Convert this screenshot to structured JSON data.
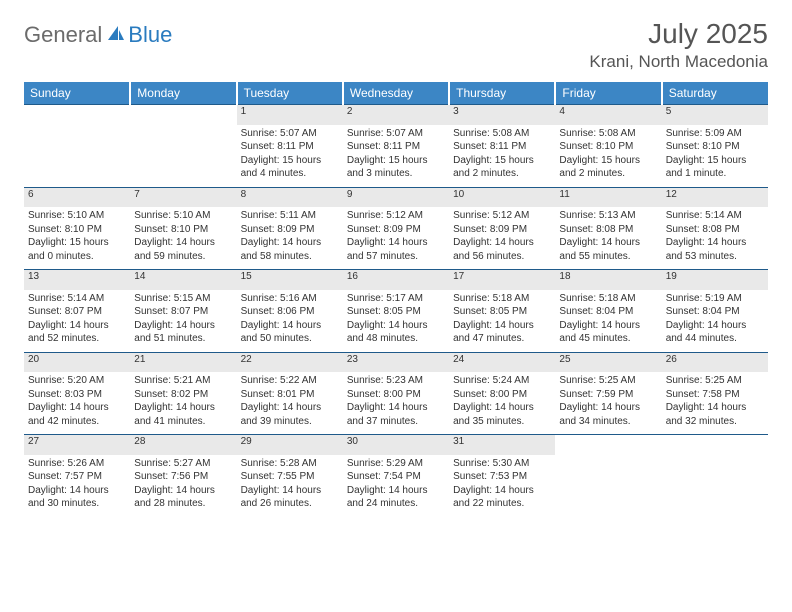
{
  "logo": {
    "text_general": "General",
    "text_blue": "Blue"
  },
  "title": {
    "month": "July 2025",
    "location": "Krani, North Macedonia"
  },
  "weekdays": [
    "Sunday",
    "Monday",
    "Tuesday",
    "Wednesday",
    "Thursday",
    "Friday",
    "Saturday"
  ],
  "colors": {
    "header_bg": "#3c86c5",
    "header_text": "#ffffff",
    "daynum_bg": "#e9e9e9",
    "rule": "#1f5a8a",
    "logo_gray": "#6b6b6b",
    "logo_blue": "#2a7bbf",
    "text": "#333333",
    "title_color": "#555555"
  },
  "typography": {
    "month_title_fontsize": 28,
    "location_fontsize": 17,
    "weekday_fontsize": 12,
    "daynum_fontsize": 11,
    "body_fontsize": 10,
    "font_family": "Arial"
  },
  "weeks": [
    {
      "nums": [
        "",
        "",
        "1",
        "2",
        "3",
        "4",
        "5"
      ],
      "cells": [
        null,
        null,
        {
          "sunrise": "Sunrise: 5:07 AM",
          "sunset": "Sunset: 8:11 PM",
          "day1": "Daylight: 15 hours",
          "day2": "and 4 minutes."
        },
        {
          "sunrise": "Sunrise: 5:07 AM",
          "sunset": "Sunset: 8:11 PM",
          "day1": "Daylight: 15 hours",
          "day2": "and 3 minutes."
        },
        {
          "sunrise": "Sunrise: 5:08 AM",
          "sunset": "Sunset: 8:11 PM",
          "day1": "Daylight: 15 hours",
          "day2": "and 2 minutes."
        },
        {
          "sunrise": "Sunrise: 5:08 AM",
          "sunset": "Sunset: 8:10 PM",
          "day1": "Daylight: 15 hours",
          "day2": "and 2 minutes."
        },
        {
          "sunrise": "Sunrise: 5:09 AM",
          "sunset": "Sunset: 8:10 PM",
          "day1": "Daylight: 15 hours",
          "day2": "and 1 minute."
        }
      ]
    },
    {
      "nums": [
        "6",
        "7",
        "8",
        "9",
        "10",
        "11",
        "12"
      ],
      "cells": [
        {
          "sunrise": "Sunrise: 5:10 AM",
          "sunset": "Sunset: 8:10 PM",
          "day1": "Daylight: 15 hours",
          "day2": "and 0 minutes."
        },
        {
          "sunrise": "Sunrise: 5:10 AM",
          "sunset": "Sunset: 8:10 PM",
          "day1": "Daylight: 14 hours",
          "day2": "and 59 minutes."
        },
        {
          "sunrise": "Sunrise: 5:11 AM",
          "sunset": "Sunset: 8:09 PM",
          "day1": "Daylight: 14 hours",
          "day2": "and 58 minutes."
        },
        {
          "sunrise": "Sunrise: 5:12 AM",
          "sunset": "Sunset: 8:09 PM",
          "day1": "Daylight: 14 hours",
          "day2": "and 57 minutes."
        },
        {
          "sunrise": "Sunrise: 5:12 AM",
          "sunset": "Sunset: 8:09 PM",
          "day1": "Daylight: 14 hours",
          "day2": "and 56 minutes."
        },
        {
          "sunrise": "Sunrise: 5:13 AM",
          "sunset": "Sunset: 8:08 PM",
          "day1": "Daylight: 14 hours",
          "day2": "and 55 minutes."
        },
        {
          "sunrise": "Sunrise: 5:14 AM",
          "sunset": "Sunset: 8:08 PM",
          "day1": "Daylight: 14 hours",
          "day2": "and 53 minutes."
        }
      ]
    },
    {
      "nums": [
        "13",
        "14",
        "15",
        "16",
        "17",
        "18",
        "19"
      ],
      "cells": [
        {
          "sunrise": "Sunrise: 5:14 AM",
          "sunset": "Sunset: 8:07 PM",
          "day1": "Daylight: 14 hours",
          "day2": "and 52 minutes."
        },
        {
          "sunrise": "Sunrise: 5:15 AM",
          "sunset": "Sunset: 8:07 PM",
          "day1": "Daylight: 14 hours",
          "day2": "and 51 minutes."
        },
        {
          "sunrise": "Sunrise: 5:16 AM",
          "sunset": "Sunset: 8:06 PM",
          "day1": "Daylight: 14 hours",
          "day2": "and 50 minutes."
        },
        {
          "sunrise": "Sunrise: 5:17 AM",
          "sunset": "Sunset: 8:05 PM",
          "day1": "Daylight: 14 hours",
          "day2": "and 48 minutes."
        },
        {
          "sunrise": "Sunrise: 5:18 AM",
          "sunset": "Sunset: 8:05 PM",
          "day1": "Daylight: 14 hours",
          "day2": "and 47 minutes."
        },
        {
          "sunrise": "Sunrise: 5:18 AM",
          "sunset": "Sunset: 8:04 PM",
          "day1": "Daylight: 14 hours",
          "day2": "and 45 minutes."
        },
        {
          "sunrise": "Sunrise: 5:19 AM",
          "sunset": "Sunset: 8:04 PM",
          "day1": "Daylight: 14 hours",
          "day2": "and 44 minutes."
        }
      ]
    },
    {
      "nums": [
        "20",
        "21",
        "22",
        "23",
        "24",
        "25",
        "26"
      ],
      "cells": [
        {
          "sunrise": "Sunrise: 5:20 AM",
          "sunset": "Sunset: 8:03 PM",
          "day1": "Daylight: 14 hours",
          "day2": "and 42 minutes."
        },
        {
          "sunrise": "Sunrise: 5:21 AM",
          "sunset": "Sunset: 8:02 PM",
          "day1": "Daylight: 14 hours",
          "day2": "and 41 minutes."
        },
        {
          "sunrise": "Sunrise: 5:22 AM",
          "sunset": "Sunset: 8:01 PM",
          "day1": "Daylight: 14 hours",
          "day2": "and 39 minutes."
        },
        {
          "sunrise": "Sunrise: 5:23 AM",
          "sunset": "Sunset: 8:00 PM",
          "day1": "Daylight: 14 hours",
          "day2": "and 37 minutes."
        },
        {
          "sunrise": "Sunrise: 5:24 AM",
          "sunset": "Sunset: 8:00 PM",
          "day1": "Daylight: 14 hours",
          "day2": "and 35 minutes."
        },
        {
          "sunrise": "Sunrise: 5:25 AM",
          "sunset": "Sunset: 7:59 PM",
          "day1": "Daylight: 14 hours",
          "day2": "and 34 minutes."
        },
        {
          "sunrise": "Sunrise: 5:25 AM",
          "sunset": "Sunset: 7:58 PM",
          "day1": "Daylight: 14 hours",
          "day2": "and 32 minutes."
        }
      ]
    },
    {
      "nums": [
        "27",
        "28",
        "29",
        "30",
        "31",
        "",
        ""
      ],
      "cells": [
        {
          "sunrise": "Sunrise: 5:26 AM",
          "sunset": "Sunset: 7:57 PM",
          "day1": "Daylight: 14 hours",
          "day2": "and 30 minutes."
        },
        {
          "sunrise": "Sunrise: 5:27 AM",
          "sunset": "Sunset: 7:56 PM",
          "day1": "Daylight: 14 hours",
          "day2": "and 28 minutes."
        },
        {
          "sunrise": "Sunrise: 5:28 AM",
          "sunset": "Sunset: 7:55 PM",
          "day1": "Daylight: 14 hours",
          "day2": "and 26 minutes."
        },
        {
          "sunrise": "Sunrise: 5:29 AM",
          "sunset": "Sunset: 7:54 PM",
          "day1": "Daylight: 14 hours",
          "day2": "and 24 minutes."
        },
        {
          "sunrise": "Sunrise: 5:30 AM",
          "sunset": "Sunset: 7:53 PM",
          "day1": "Daylight: 14 hours",
          "day2": "and 22 minutes."
        },
        null,
        null
      ]
    }
  ]
}
